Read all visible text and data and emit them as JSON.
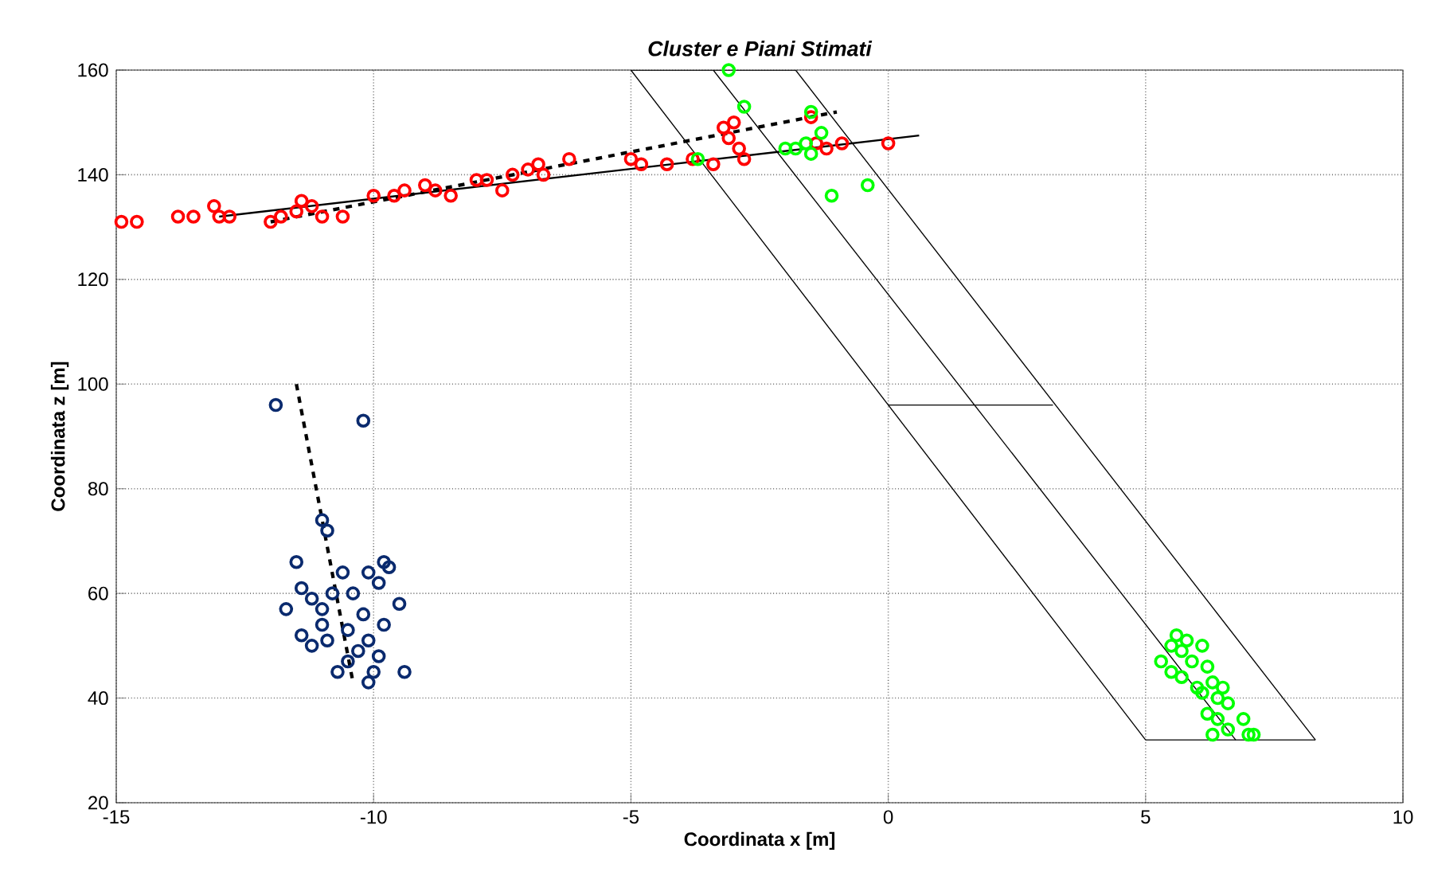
{
  "chart_data": {
    "type": "scatter",
    "title": "Cluster e Piani Stimati",
    "xlabel": "Coordinata x [m]",
    "ylabel": "Coordinata z [m]",
    "xlim": [
      -15,
      10
    ],
    "ylim": [
      20,
      160
    ],
    "xticks": [
      -15,
      -10,
      -5,
      0,
      5,
      10
    ],
    "yticks": [
      20,
      40,
      60,
      80,
      100,
      120,
      140,
      160
    ],
    "grid": true,
    "marker": "circle",
    "series": [
      {
        "type": "line",
        "color": "#000000",
        "line_style": "solid",
        "marker": "none",
        "x": [
          -5,
          -1.8
        ],
        "values": [
          160,
          160
        ]
      },
      {
        "type": "line",
        "color": "#000000",
        "line_style": "solid",
        "marker": "none",
        "x": [
          -1.8,
          8.3
        ],
        "values": [
          160,
          32
        ]
      },
      {
        "type": "line",
        "color": "#000000",
        "line_style": "solid",
        "marker": "none",
        "x": [
          5,
          8.3
        ],
        "values": [
          32,
          32
        ]
      },
      {
        "type": "line",
        "color": "#000000",
        "line_style": "solid",
        "marker": "none",
        "x": [
          -5,
          5
        ],
        "values": [
          160,
          32
        ]
      },
      {
        "type": "line",
        "color": "#000000",
        "line_style": "solid",
        "marker": "none",
        "x": [
          -3.4,
          6.75
        ],
        "values": [
          160,
          32
        ]
      },
      {
        "type": "line",
        "color": "#000000",
        "line_style": "solid",
        "marker": "none",
        "x": [
          0,
          3.2
        ],
        "values": [
          96,
          96
        ]
      },
      {
        "color": "#ff0000",
        "x": [
          -14.9,
          -14.6,
          -13.8,
          -13.5,
          -13.1,
          -13,
          -12.8,
          -12,
          -11.8,
          -11.5,
          -11.4,
          -11.2,
          -11,
          -10.6,
          -10,
          -9.6,
          -9.4,
          -9,
          -8.8,
          -8.5,
          -8,
          -7.8,
          -7.5,
          -7.3,
          -7,
          -6.8,
          -6.7,
          -6.2,
          -5,
          -4.8,
          -4.3,
          -3.8,
          -3.4,
          -3.2,
          -3,
          -3.1,
          -2.8,
          -2.9,
          -1.5,
          -1.2,
          -1.4,
          -0.9,
          0
        ],
        "values": [
          131,
          131,
          132,
          132,
          134,
          132,
          132,
          131,
          132,
          133,
          135,
          134,
          132,
          132,
          136,
          136,
          137,
          138,
          137,
          136,
          139,
          139,
          137,
          140,
          141,
          142,
          140,
          143,
          143,
          142,
          142,
          143,
          142,
          149,
          150,
          147,
          143,
          145,
          151,
          145,
          146,
          146,
          146
        ]
      },
      {
        "color": "#00ff00",
        "x": [
          -3.1,
          -2.8,
          -1.5,
          -1.6,
          -1.3,
          -2,
          -1.8,
          -1.5,
          -1.1,
          -0.4,
          -3.7,
          5.5,
          5.6,
          5.8,
          5.3,
          5.5,
          5.7,
          5.9,
          6.1,
          6.2,
          6.0,
          6.3,
          6.4,
          6.5,
          6.6,
          6.2,
          6.4,
          6.3,
          6.6,
          6.9,
          7.0,
          7.1,
          5.7,
          6.1
        ],
        "values": [
          160,
          153,
          152,
          146,
          148,
          145,
          145,
          144,
          136,
          138,
          143,
          50,
          52,
          51,
          47,
          45,
          44,
          47,
          50,
          46,
          42,
          43,
          40,
          42,
          39,
          37,
          36,
          33,
          34,
          36,
          33,
          33,
          49,
          41
        ]
      },
      {
        "color": "#0a2a6e",
        "x": [
          -11.9,
          -10.2,
          -11,
          -10.9,
          -11.5,
          -10.6,
          -10.1,
          -9.8,
          -9.7,
          -9.9,
          -9.5,
          -11.7,
          -11.2,
          -11,
          -10.8,
          -11.4,
          -10.4,
          -10.2,
          -9.8,
          -10.1,
          -11.4,
          -11.2,
          -10.9,
          -10.5,
          -10.3,
          -9.9,
          -10.7,
          -10,
          -10.1,
          -9.4,
          -10.5,
          -11
        ],
        "values": [
          96,
          93,
          74,
          72,
          66,
          64,
          64,
          66,
          65,
          62,
          58,
          57,
          59,
          57,
          60,
          61,
          60,
          56,
          54,
          51,
          52,
          50,
          51,
          53,
          49,
          48,
          45,
          45,
          43,
          45,
          47,
          54
        ]
      },
      {
        "type": "line",
        "color": "#000000",
        "line_style": "solid",
        "marker": "none",
        "x": [
          -13,
          0.6
        ],
        "values": [
          132,
          147.5
        ]
      },
      {
        "type": "line",
        "color": "#000000",
        "line_style": "dashed",
        "marker": "none",
        "x": [
          -12,
          -1
        ],
        "values": [
          131,
          152
        ]
      },
      {
        "type": "line",
        "color": "#000000",
        "line_style": "dashed",
        "marker": "none",
        "x": [
          -11.5,
          -10.4
        ],
        "values": [
          100,
          43
        ]
      }
    ]
  }
}
